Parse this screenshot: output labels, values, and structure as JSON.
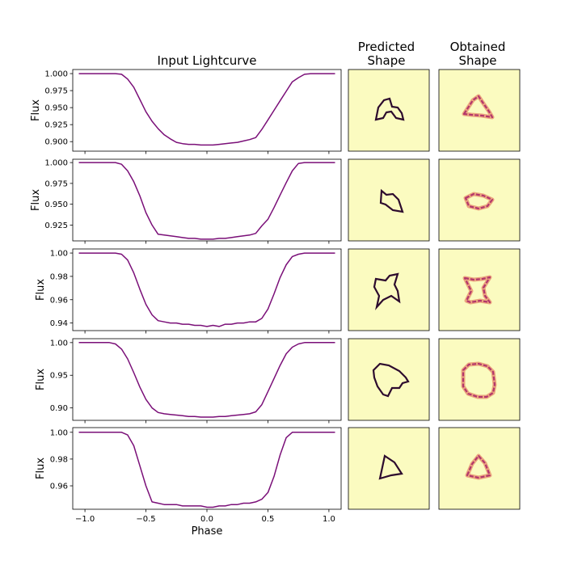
{
  "chart_data": {
    "type": "line",
    "titles": {
      "lightcurve": "Input Lightcurve",
      "predicted": [
        "Predicted",
        "Shape"
      ],
      "obtained": [
        "Obtained",
        "Shape"
      ]
    },
    "xlabel": "Phase",
    "ylabel": "Flux",
    "xlim": [
      -1.1,
      1.1
    ],
    "xticks": [
      -1.0,
      -0.5,
      0.0,
      0.5,
      1.0
    ],
    "xtick_labels": [
      "−1.0",
      "−0.5",
      "0.0",
      "0.5",
      "1.0"
    ],
    "line_color": "#7a0f78",
    "shape_bg": "#fbfbc0",
    "shape_outline_color": "#2d0b2e",
    "shape_obtained_color": "#b3366b",
    "rows": [
      {
        "ylim": [
          0.886,
          1.006
        ],
        "yticks": [
          0.9,
          0.925,
          0.95,
          0.975,
          1.0
        ],
        "ytick_labels": [
          "0.900",
          "0.925",
          "0.950",
          "0.975",
          "1.000"
        ],
        "x": [
          -1.05,
          -0.75,
          -0.7,
          -0.65,
          -0.6,
          -0.55,
          -0.5,
          -0.45,
          -0.4,
          -0.35,
          -0.3,
          -0.25,
          -0.2,
          -0.15,
          -0.1,
          -0.05,
          0.0,
          0.05,
          0.1,
          0.15,
          0.2,
          0.25,
          0.3,
          0.35,
          0.4,
          0.45,
          0.5,
          0.55,
          0.6,
          0.65,
          0.7,
          0.75,
          0.8,
          0.85,
          0.9,
          1.05
        ],
        "y": [
          1.0,
          1.0,
          0.999,
          0.992,
          0.98,
          0.962,
          0.944,
          0.93,
          0.919,
          0.91,
          0.904,
          0.899,
          0.897,
          0.896,
          0.896,
          0.895,
          0.895,
          0.895,
          0.896,
          0.897,
          0.898,
          0.899,
          0.901,
          0.903,
          0.906,
          0.918,
          0.932,
          0.946,
          0.96,
          0.974,
          0.988,
          0.994,
          0.999,
          1.0,
          1.0,
          1.0
        ]
      },
      {
        "ylim": [
          0.906,
          1.004
        ],
        "yticks": [
          0.925,
          0.95,
          0.975,
          1.0
        ],
        "ytick_labels": [
          "0.925",
          "0.950",
          "0.975",
          "1.000"
        ],
        "x": [
          -1.05,
          -0.75,
          -0.7,
          -0.65,
          -0.6,
          -0.55,
          -0.5,
          -0.45,
          -0.4,
          -0.35,
          -0.3,
          -0.25,
          -0.2,
          -0.15,
          -0.1,
          -0.05,
          0.0,
          0.05,
          0.1,
          0.15,
          0.2,
          0.25,
          0.3,
          0.35,
          0.4,
          0.45,
          0.5,
          0.55,
          0.6,
          0.65,
          0.7,
          0.75,
          0.8,
          1.05
        ],
        "y": [
          1.0,
          1.0,
          0.998,
          0.99,
          0.977,
          0.96,
          0.94,
          0.925,
          0.914,
          0.913,
          0.912,
          0.911,
          0.91,
          0.909,
          0.909,
          0.908,
          0.908,
          0.908,
          0.909,
          0.909,
          0.91,
          0.911,
          0.912,
          0.913,
          0.915,
          0.924,
          0.932,
          0.946,
          0.961,
          0.976,
          0.99,
          0.999,
          1.0,
          1.0
        ]
      },
      {
        "ylim": [
          0.9335,
          1.0035
        ],
        "yticks": [
          0.94,
          0.96,
          0.98,
          1.0
        ],
        "ytick_labels": [
          "0.94",
          "0.96",
          "0.98",
          "1.00"
        ],
        "x": [
          -1.05,
          -0.75,
          -0.7,
          -0.65,
          -0.6,
          -0.55,
          -0.5,
          -0.45,
          -0.4,
          -0.35,
          -0.3,
          -0.25,
          -0.2,
          -0.15,
          -0.1,
          -0.05,
          0.0,
          0.05,
          0.1,
          0.15,
          0.2,
          0.25,
          0.3,
          0.35,
          0.4,
          0.45,
          0.5,
          0.55,
          0.6,
          0.65,
          0.7,
          0.75,
          0.8,
          1.05
        ],
        "y": [
          1.0,
          1.0,
          0.999,
          0.994,
          0.983,
          0.969,
          0.956,
          0.947,
          0.942,
          0.941,
          0.94,
          0.94,
          0.939,
          0.939,
          0.938,
          0.938,
          0.937,
          0.938,
          0.937,
          0.939,
          0.939,
          0.94,
          0.94,
          0.941,
          0.941,
          0.944,
          0.952,
          0.965,
          0.979,
          0.99,
          0.997,
          0.999,
          1.0,
          1.0
        ]
      },
      {
        "ylim": [
          0.881,
          1.006
        ],
        "yticks": [
          0.9,
          0.95,
          1.0
        ],
        "ytick_labels": [
          "0.90",
          "0.95",
          "1.00"
        ],
        "x": [
          -1.05,
          -0.8,
          -0.75,
          -0.7,
          -0.65,
          -0.6,
          -0.55,
          -0.5,
          -0.45,
          -0.4,
          -0.35,
          -0.3,
          -0.25,
          -0.2,
          -0.15,
          -0.1,
          -0.05,
          0.0,
          0.05,
          0.1,
          0.15,
          0.2,
          0.25,
          0.3,
          0.35,
          0.4,
          0.45,
          0.5,
          0.55,
          0.6,
          0.65,
          0.7,
          0.75,
          0.8,
          0.85,
          1.05
        ],
        "y": [
          1.0,
          1.0,
          0.998,
          0.99,
          0.975,
          0.954,
          0.932,
          0.913,
          0.9,
          0.893,
          0.891,
          0.89,
          0.889,
          0.888,
          0.887,
          0.887,
          0.886,
          0.886,
          0.886,
          0.887,
          0.887,
          0.888,
          0.889,
          0.89,
          0.891,
          0.894,
          0.905,
          0.925,
          0.945,
          0.965,
          0.983,
          0.993,
          0.998,
          1.0,
          1.0,
          1.0
        ]
      },
      {
        "ylim": [
          0.9425,
          1.0035
        ],
        "yticks": [
          0.96,
          0.98,
          1.0
        ],
        "ytick_labels": [
          "0.96",
          "0.98",
          "1.00"
        ],
        "x": [
          -1.05,
          -0.7,
          -0.65,
          -0.6,
          -0.55,
          -0.5,
          -0.45,
          -0.4,
          -0.35,
          -0.3,
          -0.25,
          -0.2,
          -0.15,
          -0.1,
          -0.05,
          0.0,
          0.05,
          0.1,
          0.15,
          0.2,
          0.25,
          0.3,
          0.35,
          0.4,
          0.45,
          0.5,
          0.55,
          0.6,
          0.65,
          0.7,
          0.75,
          1.05
        ],
        "y": [
          1.0,
          1.0,
          0.998,
          0.99,
          0.975,
          0.96,
          0.948,
          0.947,
          0.946,
          0.946,
          0.946,
          0.945,
          0.945,
          0.945,
          0.945,
          0.944,
          0.944,
          0.945,
          0.945,
          0.946,
          0.946,
          0.947,
          0.947,
          0.948,
          0.95,
          0.955,
          0.967,
          0.983,
          0.996,
          1.0,
          1.0,
          1.0
        ]
      }
    ]
  }
}
